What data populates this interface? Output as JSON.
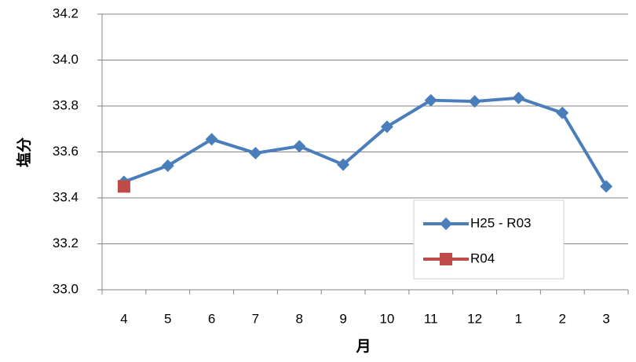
{
  "chart_data": {
    "type": "line",
    "xlabel": "月",
    "ylabel": "塩分",
    "categories": [
      "4",
      "5",
      "6",
      "7",
      "8",
      "9",
      "10",
      "11",
      "12",
      "1",
      "2",
      "3"
    ],
    "series": [
      {
        "name": "H25 - R03",
        "color": "#4a7ebb",
        "marker": "diamond",
        "values": [
          33.47,
          33.54,
          33.655,
          33.595,
          33.625,
          33.545,
          33.71,
          33.825,
          33.82,
          33.835,
          33.77,
          33.45
        ]
      },
      {
        "name": "R04",
        "color": "#be4b48",
        "marker": "square",
        "values": [
          33.45,
          null,
          null,
          null,
          null,
          null,
          null,
          null,
          null,
          null,
          null,
          null
        ]
      }
    ],
    "ylim": [
      33.0,
      34.2
    ],
    "yticks": [
      {
        "value": 33.0,
        "label": "33.0"
      },
      33.2,
      33.4,
      33.6,
      33.8,
      {
        "value": 34.0,
        "label": "34.0"
      },
      34.2
    ],
    "grid": true,
    "legend": "lower right"
  }
}
